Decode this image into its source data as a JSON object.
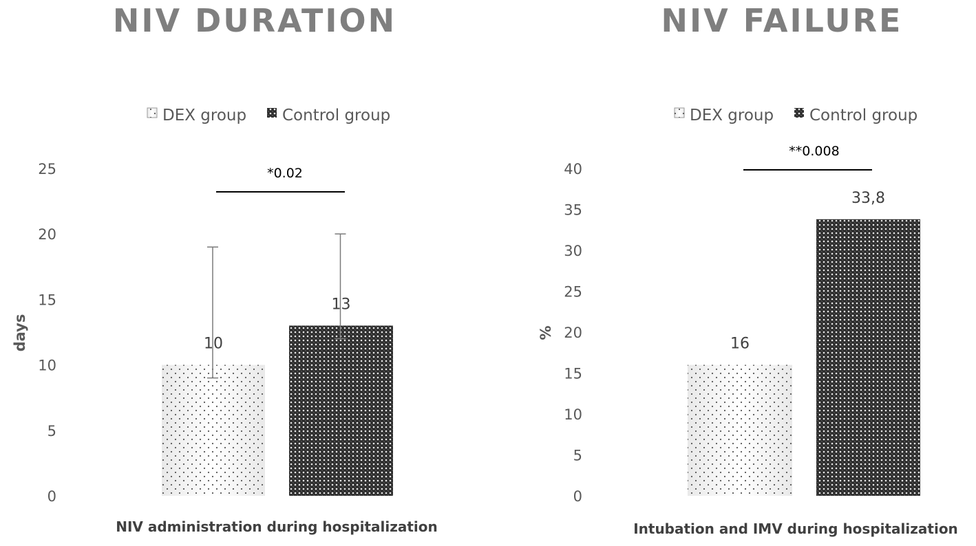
{
  "chart_data": [
    {
      "type": "bar",
      "title": "NIV DURATION",
      "categories": [
        "NIV administration during hospitalization"
      ],
      "series": [
        {
          "name": "DEX group",
          "values": [
            10
          ],
          "error_low": [
            9
          ],
          "error_high": [
            19
          ],
          "labels": [
            "10"
          ]
        },
        {
          "name": "Control group",
          "values": [
            13
          ],
          "error_low": [
            12
          ],
          "error_high": [
            20
          ],
          "labels": [
            "13"
          ]
        }
      ],
      "xlabel": "NIV administration during hospitalization",
      "ylabel": "days",
      "ylim": [
        0,
        25
      ],
      "yticks": [
        "0",
        "5",
        "10",
        "15",
        "20",
        "25"
      ],
      "significance": "*0.02",
      "legend": [
        "DEX group",
        "Control group"
      ],
      "legend_position": "top-center",
      "grid": false
    },
    {
      "type": "bar",
      "title": "NIV FAILURE",
      "categories": [
        "Intubation and IMV during hospitalization"
      ],
      "series": [
        {
          "name": "DEX group",
          "values": [
            16
          ],
          "labels": [
            "16"
          ]
        },
        {
          "name": "Control group",
          "values": [
            33.8
          ],
          "labels": [
            "33,8"
          ]
        }
      ],
      "xlabel": "Intubation and IMV during hospitalization",
      "ylabel": "%",
      "ylim": [
        0,
        40
      ],
      "yticks": [
        "0",
        "5",
        "10",
        "15",
        "20",
        "25",
        "30",
        "35",
        "40"
      ],
      "significance": "**0.008",
      "legend": [
        "DEX group",
        "Control group"
      ],
      "legend_position": "top-center",
      "grid": false
    }
  ],
  "colors": {
    "title": "#7f7f7f",
    "axis_text": "#595959",
    "dex_fill": "#f7f7f7",
    "dex_dot": "#555555",
    "control_fill": "#3a3a3a",
    "control_pattern": "#e6e6e6"
  }
}
